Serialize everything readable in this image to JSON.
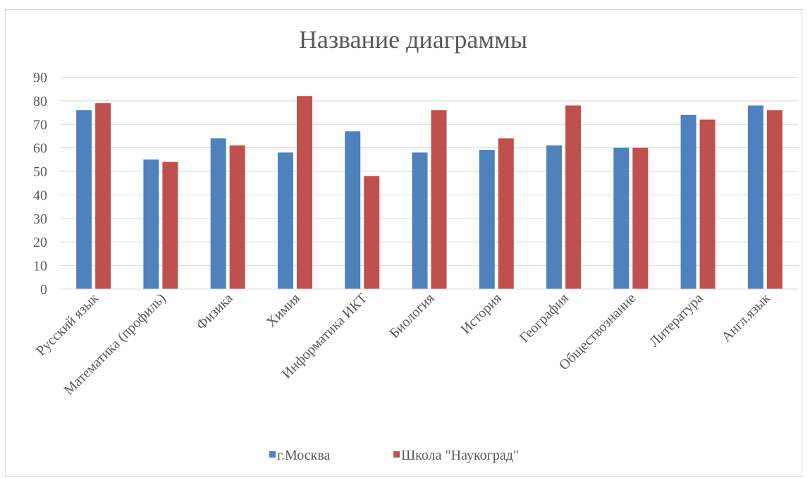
{
  "chart_data": {
    "type": "bar",
    "title": "Название диаграммы",
    "xlabel": "",
    "ylabel": "",
    "ylim": [
      0,
      90
    ],
    "yticks": [
      0,
      10,
      20,
      30,
      40,
      50,
      60,
      70,
      80,
      90
    ],
    "grid": true,
    "legend_position": "bottom",
    "categories": [
      "Русский язык",
      "Математика (профиль)",
      "Физика",
      "Химия",
      "Информатика ИКТ",
      "Биология",
      "История",
      "География",
      "Обществознание",
      "Литература",
      "Англ.язык"
    ],
    "series": [
      {
        "name": "г.Москва",
        "color": "#4f81bd",
        "values": [
          76,
          55,
          64,
          58,
          67,
          58,
          59,
          61,
          60,
          74,
          78
        ]
      },
      {
        "name": "Школа \"Наукоград\"",
        "color": "#c0504d",
        "values": [
          79,
          54,
          61,
          82,
          48,
          76,
          64,
          78,
          60,
          72,
          76
        ]
      }
    ]
  }
}
